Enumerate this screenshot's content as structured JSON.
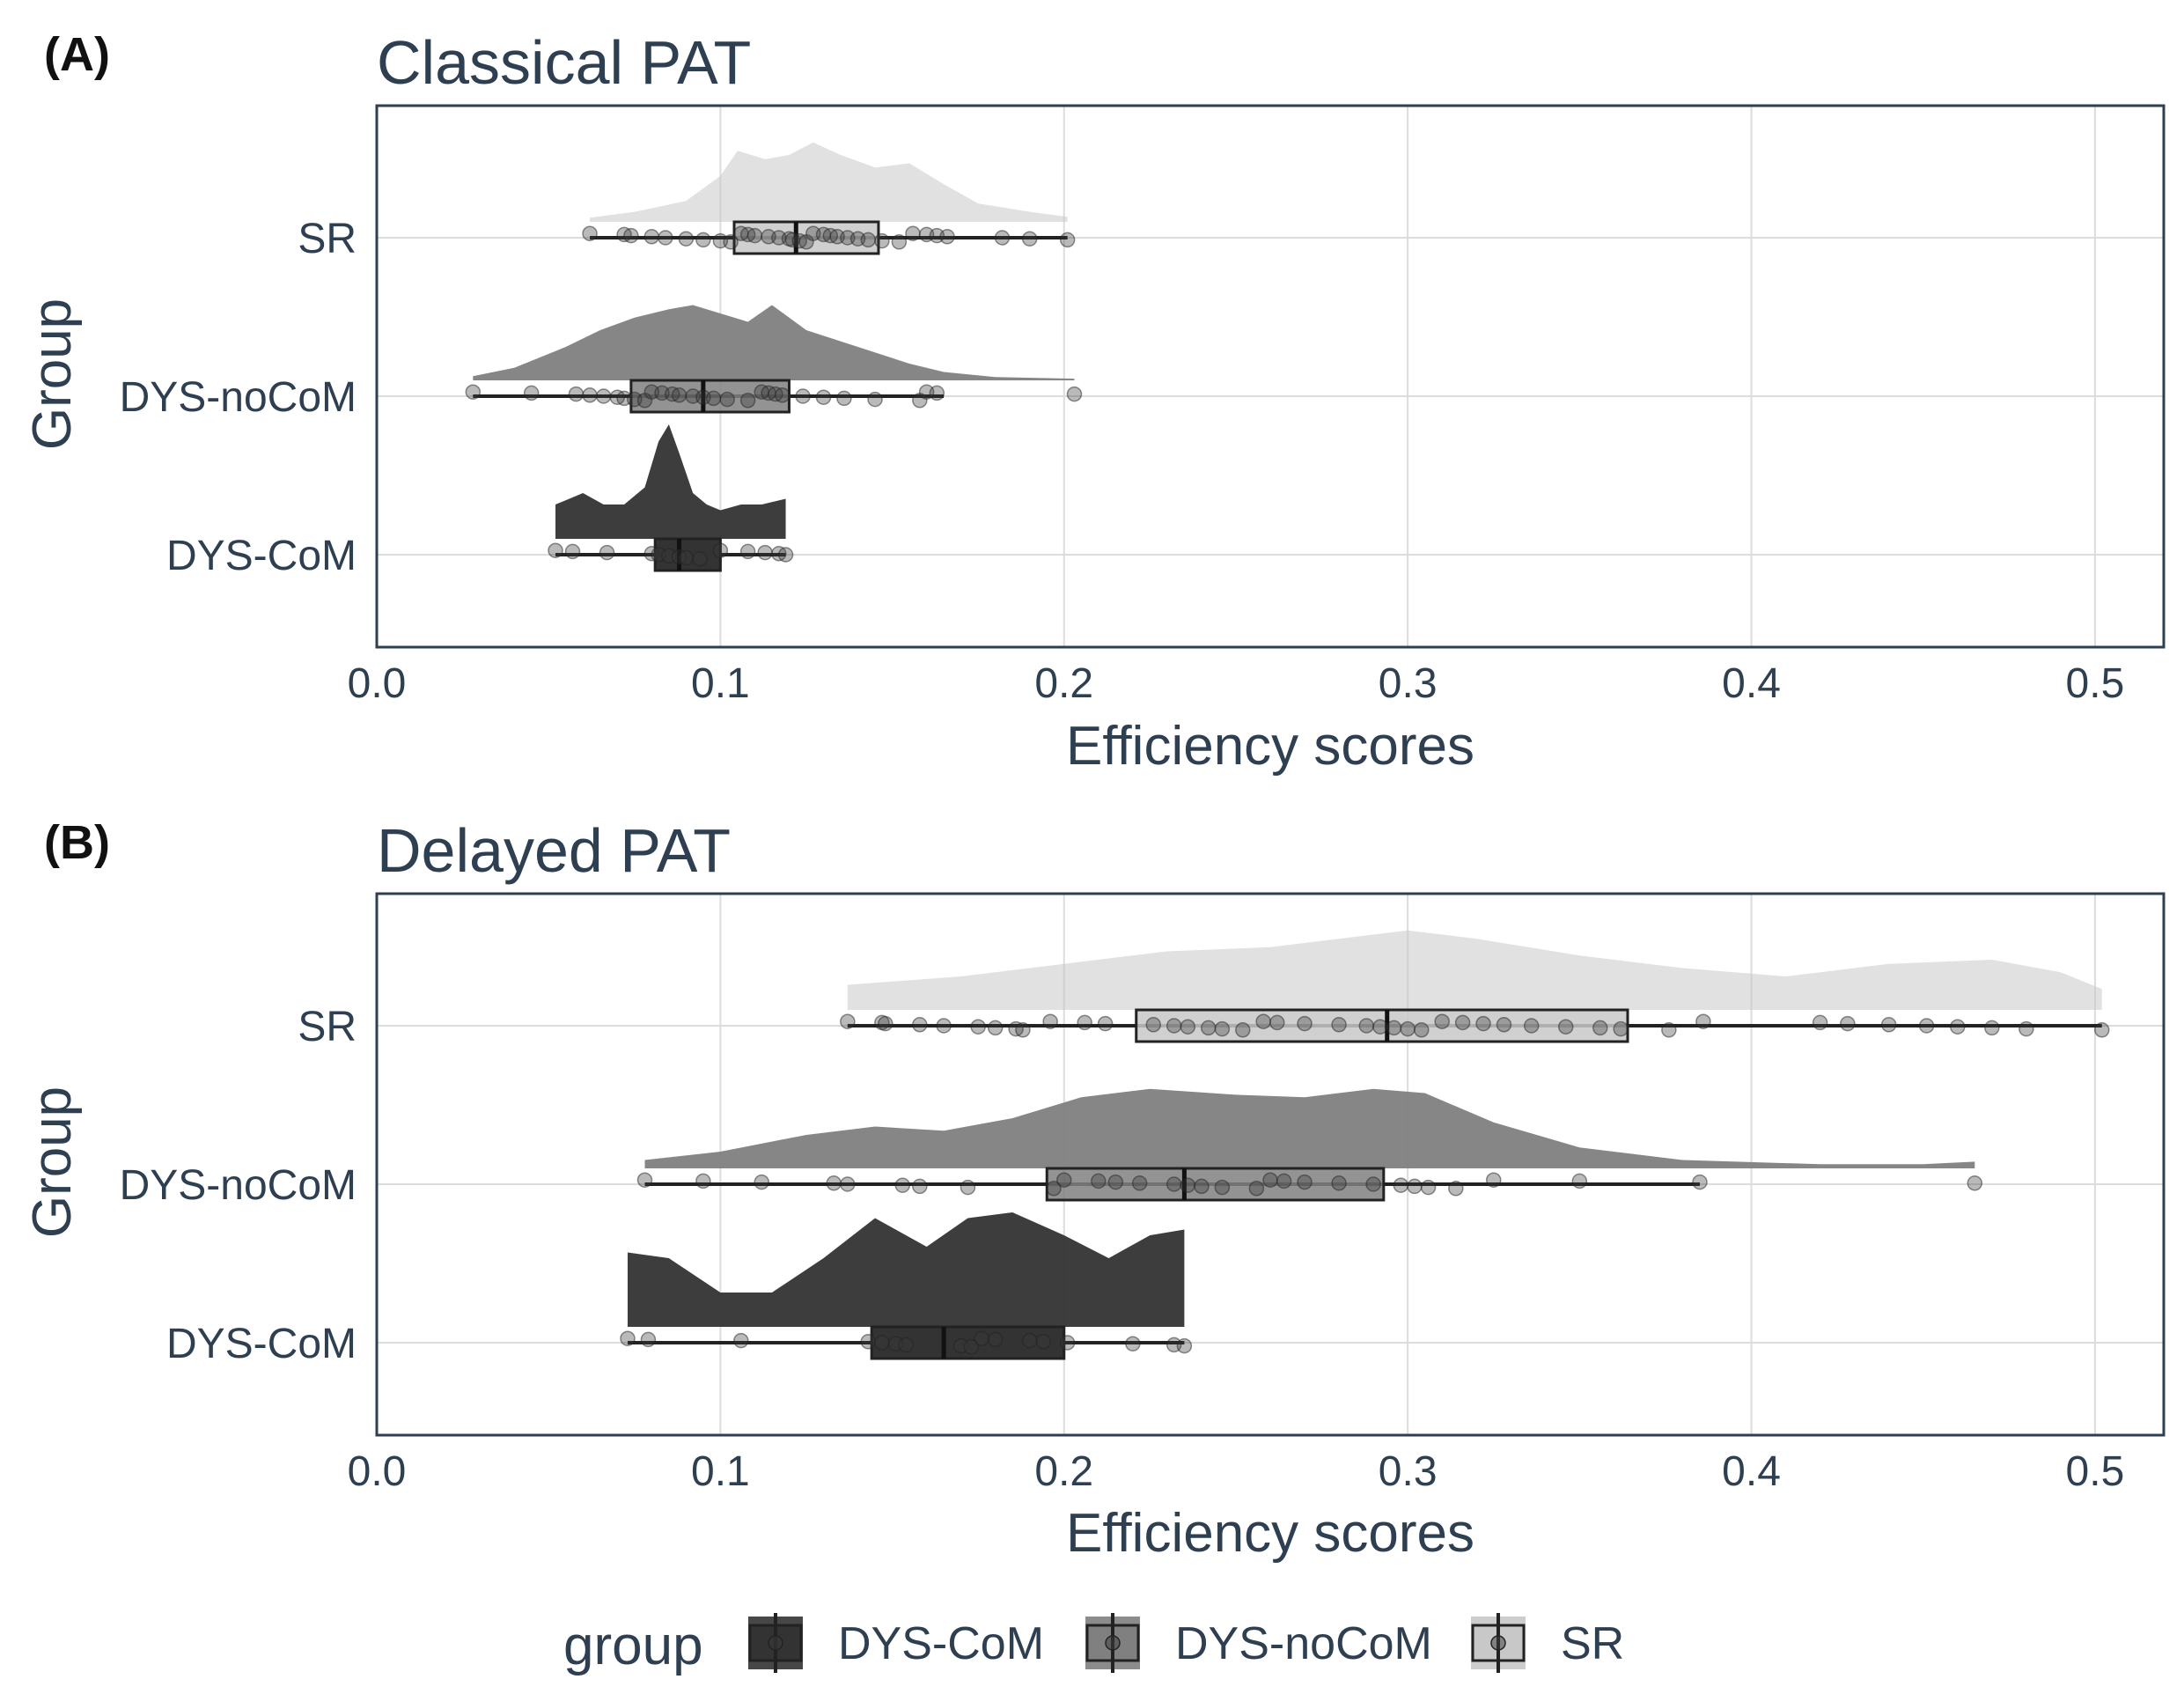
{
  "legend": {
    "title": "group",
    "entries": [
      "DYS-CoM",
      "DYS-noCoM",
      "SR"
    ]
  },
  "colors": {
    "DYS-CoM": "#333333",
    "DYS-noCoM": "#808080",
    "SR": "#c8c8c8",
    "axis_text": "#2e3f52",
    "grid": "#dcdcdc",
    "frame": "#2e3f52"
  },
  "chart_data": [
    {
      "type": "raincloud",
      "panel_tag": "(A)",
      "title": "Classical PAT",
      "xlabel": "Efficiency scores",
      "ylabel": "Group",
      "xlim": [
        0.0,
        0.52
      ],
      "xticks": [
        0.0,
        0.1,
        0.2,
        0.3,
        0.4,
        0.5
      ],
      "xtick_labels": [
        "0.0",
        "0.1",
        "0.2",
        "0.3",
        "0.4",
        "0.5"
      ],
      "categories": [
        "SR",
        "DYS-noCoM",
        "DYS-CoM"
      ],
      "groups": [
        {
          "name": "SR",
          "box": {
            "whisker_low": 0.062,
            "q1": 0.104,
            "median": 0.122,
            "q3": 0.146,
            "whisker_high": 0.201
          },
          "density": {
            "x": [
              0.062,
              0.075,
              0.09,
              0.1,
              0.105,
              0.113,
              0.12,
              0.127,
              0.135,
              0.145,
              0.155,
              0.165,
              0.175,
              0.19,
              0.201
            ],
            "y": [
              0.05,
              0.12,
              0.25,
              0.55,
              0.85,
              0.75,
              0.8,
              0.95,
              0.8,
              0.65,
              0.7,
              0.45,
              0.22,
              0.12,
              0.06
            ]
          },
          "points": [
            0.062,
            0.072,
            0.074,
            0.08,
            0.084,
            0.09,
            0.095,
            0.1,
            0.103,
            0.106,
            0.108,
            0.11,
            0.114,
            0.117,
            0.12,
            0.121,
            0.123,
            0.125,
            0.127,
            0.13,
            0.132,
            0.134,
            0.137,
            0.14,
            0.143,
            0.147,
            0.152,
            0.156,
            0.16,
            0.163,
            0.166,
            0.182,
            0.19,
            0.201
          ]
        },
        {
          "name": "DYS-noCoM",
          "box": {
            "whisker_low": 0.028,
            "q1": 0.074,
            "median": 0.095,
            "q3": 0.12,
            "whisker_high": 0.165
          },
          "density": {
            "x": [
              0.028,
              0.04,
              0.055,
              0.065,
              0.075,
              0.085,
              0.092,
              0.1,
              0.108,
              0.115,
              0.125,
              0.14,
              0.155,
              0.165,
              0.18,
              0.203
            ],
            "y": [
              0.05,
              0.15,
              0.4,
              0.6,
              0.75,
              0.85,
              0.9,
              0.8,
              0.7,
              0.9,
              0.6,
              0.4,
              0.2,
              0.1,
              0.04,
              0.02
            ]
          },
          "points": [
            0.028,
            0.045,
            0.058,
            0.062,
            0.066,
            0.07,
            0.072,
            0.075,
            0.078,
            0.08,
            0.083,
            0.086,
            0.088,
            0.092,
            0.095,
            0.098,
            0.102,
            0.108,
            0.112,
            0.114,
            0.116,
            0.118,
            0.124,
            0.13,
            0.136,
            0.145,
            0.158,
            0.16,
            0.163,
            0.203
          ]
        },
        {
          "name": "DYS-CoM",
          "box": {
            "whisker_low": 0.052,
            "q1": 0.081,
            "median": 0.088,
            "q3": 0.1,
            "whisker_high": 0.119
          },
          "density": {
            "x": [
              0.052,
              0.06,
              0.066,
              0.072,
              0.078,
              0.082,
              0.085,
              0.088,
              0.092,
              0.096,
              0.1,
              0.106,
              0.112,
              0.119
            ],
            "y": [
              0.3,
              0.4,
              0.3,
              0.3,
              0.45,
              0.85,
              1.0,
              0.75,
              0.4,
              0.3,
              0.25,
              0.3,
              0.3,
              0.35
            ]
          },
          "points": [
            0.052,
            0.057,
            0.067,
            0.08,
            0.082,
            0.085,
            0.088,
            0.09,
            0.094,
            0.1,
            0.108,
            0.113,
            0.117,
            0.119
          ]
        }
      ]
    },
    {
      "type": "raincloud",
      "panel_tag": "(B)",
      "title": "Delayed PAT",
      "xlabel": "Efficiency scores",
      "ylabel": "Group",
      "xlim": [
        0.0,
        0.52
      ],
      "xticks": [
        0.0,
        0.1,
        0.2,
        0.3,
        0.4,
        0.5
      ],
      "xtick_labels": [
        "0.0",
        "0.1",
        "0.2",
        "0.3",
        "0.4",
        "0.5"
      ],
      "categories": [
        "SR",
        "DYS-noCoM",
        "DYS-CoM"
      ],
      "groups": [
        {
          "name": "SR",
          "box": {
            "whisker_low": 0.137,
            "q1": 0.221,
            "median": 0.294,
            "q3": 0.364,
            "whisker_high": 0.502
          },
          "density": {
            "x": [
              0.137,
              0.17,
              0.2,
              0.23,
              0.26,
              0.28,
              0.3,
              0.32,
              0.35,
              0.38,
              0.41,
              0.44,
              0.47,
              0.49,
              0.502
            ],
            "y": [
              0.3,
              0.4,
              0.55,
              0.7,
              0.75,
              0.85,
              0.95,
              0.85,
              0.65,
              0.5,
              0.4,
              0.55,
              0.6,
              0.45,
              0.25
            ]
          },
          "points": [
            0.137,
            0.147,
            0.148,
            0.158,
            0.165,
            0.175,
            0.18,
            0.186,
            0.188,
            0.196,
            0.206,
            0.212,
            0.226,
            0.232,
            0.236,
            0.242,
            0.246,
            0.252,
            0.258,
            0.262,
            0.27,
            0.28,
            0.288,
            0.292,
            0.296,
            0.3,
            0.304,
            0.31,
            0.316,
            0.322,
            0.328,
            0.336,
            0.346,
            0.356,
            0.362,
            0.376,
            0.386,
            0.42,
            0.428,
            0.44,
            0.451,
            0.46,
            0.47,
            0.48,
            0.502
          ]
        },
        {
          "name": "DYS-noCoM",
          "box": {
            "whisker_low": 0.078,
            "q1": 0.195,
            "median": 0.235,
            "q3": 0.293,
            "whisker_high": 0.385
          },
          "density": {
            "x": [
              0.078,
              0.1,
              0.125,
              0.145,
              0.165,
              0.185,
              0.205,
              0.225,
              0.25,
              0.27,
              0.29,
              0.305,
              0.325,
              0.35,
              0.38,
              0.42,
              0.45,
              0.465
            ],
            "y": [
              0.1,
              0.2,
              0.4,
              0.5,
              0.45,
              0.6,
              0.85,
              0.95,
              0.88,
              0.85,
              0.95,
              0.9,
              0.55,
              0.25,
              0.1,
              0.05,
              0.05,
              0.08
            ]
          },
          "points": [
            0.078,
            0.095,
            0.112,
            0.133,
            0.137,
            0.153,
            0.158,
            0.172,
            0.197,
            0.2,
            0.21,
            0.215,
            0.222,
            0.232,
            0.236,
            0.24,
            0.246,
            0.256,
            0.26,
            0.264,
            0.27,
            0.28,
            0.29,
            0.298,
            0.302,
            0.306,
            0.314,
            0.325,
            0.35,
            0.385,
            0.465
          ]
        },
        {
          "name": "DYS-CoM",
          "box": {
            "whisker_low": 0.073,
            "q1": 0.144,
            "median": 0.165,
            "q3": 0.2,
            "whisker_high": 0.235
          },
          "density": {
            "x": [
              0.073,
              0.085,
              0.1,
              0.115,
              0.13,
              0.145,
              0.16,
              0.172,
              0.185,
              0.2,
              0.213,
              0.225,
              0.235
            ],
            "y": [
              0.65,
              0.6,
              0.3,
              0.3,
              0.6,
              0.95,
              0.7,
              0.95,
              1.0,
              0.8,
              0.6,
              0.8,
              0.85
            ]
          },
          "points": [
            0.073,
            0.079,
            0.106,
            0.143,
            0.147,
            0.151,
            0.154,
            0.17,
            0.173,
            0.176,
            0.18,
            0.19,
            0.194,
            0.201,
            0.22,
            0.232,
            0.235
          ]
        }
      ]
    }
  ]
}
